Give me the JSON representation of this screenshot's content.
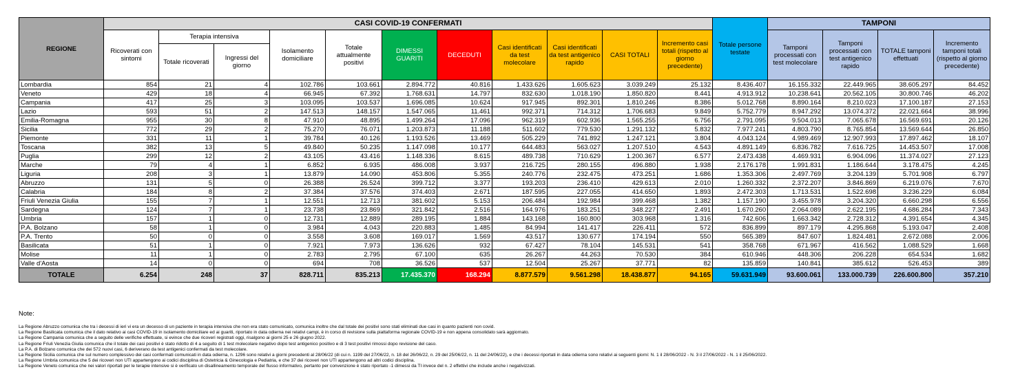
{
  "header": {
    "regione": "REGIONE",
    "casi_title": "CASI COVID-19 CONFERMATI",
    "terapia_intensiva": "Terapia intensiva",
    "tamponi_title": "TAMPONI",
    "columns": [
      "Ricoverati con sintomi",
      "Totale ricoverati",
      "Ingressi del giorno",
      "Isolamento domiciliare",
      "Totale attualmente positivi",
      "DIMESSI GUARITI",
      "DECEDUTI",
      "Casi identificati da test molecolare",
      "Casi identificati da test antigenico rapido",
      "CASI TOTALI",
      "Incremento casi totali (rispetto al giorno precedente)",
      "Totale persone testate",
      "Tamponi processati con test molecolare",
      "Tamponi processati con test antigenico rapido",
      "TOTALE tamponi effettuati",
      "Incremento tamponi totali (rispetto al giorno precedente)"
    ]
  },
  "table": {
    "rows": [
      [
        "Lombardia",
        "854",
        "21",
        "4",
        "102.786",
        "103.661",
        "2.894.772",
        "40.816",
        "1.433.626",
        "1.605.623",
        "3.039.249",
        "25.132",
        "8.436.407",
        "16.155.332",
        "22.449.965",
        "38.605.297",
        "84.452"
      ],
      [
        "Veneto",
        "429",
        "18",
        "4",
        "66.945",
        "67.392",
        "1.768.631",
        "14.797",
        "832.630",
        "1.018.190",
        "1.850.820",
        "8.441",
        "4.913.912",
        "10.238.641",
        "20.562.105",
        "30.800.746",
        "46.202"
      ],
      [
        "Campania",
        "417",
        "25",
        "3",
        "103.095",
        "103.537",
        "1.696.085",
        "10.624",
        "917.945",
        "892.301",
        "1.810.246",
        "8.386",
        "5.012.768",
        "8.890.164",
        "8.210.023",
        "17.100.187",
        "27.153"
      ],
      [
        "Lazio",
        "593",
        "51",
        "2",
        "147.513",
        "148.157",
        "1.547.065",
        "11.461",
        "992.371",
        "714.312",
        "1.706.683",
        "9.849",
        "5.752.779",
        "8.947.292",
        "13.074.372",
        "22.021.664",
        "38.996"
      ],
      [
        "Emilia-Romagna",
        "955",
        "30",
        "8",
        "47.910",
        "48.895",
        "1.499.264",
        "17.096",
        "962.319",
        "602.936",
        "1.565.255",
        "6.756",
        "2.791.095",
        "9.504.013",
        "7.065.678",
        "16.569.691",
        "20.126"
      ],
      [
        "Sicilia",
        "772",
        "29",
        "2",
        "75.270",
        "76.071",
        "1.203.873",
        "11.188",
        "511.602",
        "779.530",
        "1.291.132",
        "5.832",
        "7.977.241",
        "4.803.790",
        "8.765.854",
        "13.569.644",
        "26.850"
      ],
      [
        "Piemonte",
        "331",
        "11",
        "1",
        "39.784",
        "40.126",
        "1.193.526",
        "13.469",
        "505.229",
        "741.892",
        "1.247.121",
        "3.804",
        "4.043.124",
        "4.989.469",
        "12.907.993",
        "17.897.462",
        "18.107"
      ],
      [
        "Toscana",
        "382",
        "13",
        "5",
        "49.840",
        "50.235",
        "1.147.098",
        "10.177",
        "644.483",
        "563.027",
        "1.207.510",
        "4.543",
        "4.891.149",
        "6.836.782",
        "7.616.725",
        "14.453.507",
        "17.008"
      ],
      [
        "Puglia",
        "299",
        "12",
        "2",
        "43.105",
        "43.416",
        "1.148.336",
        "8.615",
        "489.738",
        "710.629",
        "1.200.367",
        "6.577",
        "2.473.438",
        "4.469.931",
        "6.904.096",
        "11.374.027",
        "27.123"
      ],
      [
        "Marche",
        "79",
        "4",
        "1",
        "6.852",
        "6.935",
        "486.008",
        "3.937",
        "216.725",
        "280.155",
        "496.880",
        "1.938",
        "2.176.178",
        "1.991.831",
        "1.186.644",
        "3.178.475",
        "4.245"
      ],
      [
        "Liguria",
        "208",
        "3",
        "1",
        "13.879",
        "14.090",
        "453.806",
        "5.355",
        "240.776",
        "232.475",
        "473.251",
        "1.686",
        "1.353.306",
        "2.497.769",
        "3.204.139",
        "5.701.908",
        "6.797"
      ],
      [
        "Abruzzo",
        "131",
        "5",
        "0",
        "26.388",
        "26.524",
        "399.712",
        "3.377",
        "193.203",
        "236.410",
        "429.613",
        "2.010",
        "1.260.332",
        "2.372.207",
        "3.846.869",
        "6.219.076",
        "7.670"
      ],
      [
        "Calabria",
        "184",
        "8",
        "2",
        "37.384",
        "37.576",
        "374.403",
        "2.671",
        "187.595",
        "227.055",
        "414.650",
        "1.893",
        "2.472.303",
        "1.713.531",
        "1.522.698",
        "3.236.229",
        "6.084"
      ],
      [
        "Friuli Venezia Giulia",
        "155",
        "7",
        "1",
        "12.551",
        "12.713",
        "381.602",
        "5.153",
        "206.484",
        "192.984",
        "399.468",
        "1.382",
        "1.157.190",
        "3.455.978",
        "3.204.320",
        "6.660.298",
        "6.556"
      ],
      [
        "Sardegna",
        "124",
        "7",
        "1",
        "23.738",
        "23.869",
        "321.842",
        "2.516",
        "164.976",
        "183.251",
        "348.227",
        "2.491",
        "1.670.260",
        "2.064.089",
        "2.622.195",
        "4.686.284",
        "7.343"
      ],
      [
        "Umbria",
        "157",
        "1",
        "0",
        "12.731",
        "12.889",
        "289.195",
        "1.884",
        "143.168",
        "160.800",
        "303.968",
        "1.316",
        "742.606",
        "1.663.342",
        "2.728.312",
        "4.391.654",
        "4.345"
      ],
      [
        "P.A. Bolzano",
        "58",
        "1",
        "0",
        "3.984",
        "4.043",
        "220.883",
        "1.485",
        "84.994",
        "141.417",
        "226.411",
        "572",
        "836.899",
        "897.179",
        "4.295.868",
        "5.193.047",
        "2.408"
      ],
      [
        "P.A. Trento",
        "50",
        "0",
        "0",
        "3.558",
        "3.608",
        "169.017",
        "1.569",
        "43.517",
        "130.677",
        "174.194",
        "550",
        "565.389",
        "847.607",
        "1.824.481",
        "2.672.088",
        "2.006"
      ],
      [
        "Basilicata",
        "51",
        "1",
        "0",
        "7.921",
        "7.973",
        "136.626",
        "932",
        "67.427",
        "78.104",
        "145.531",
        "541",
        "358.768",
        "671.967",
        "416.562",
        "1.088.529",
        "1.668"
      ],
      [
        "Molise",
        "11",
        "1",
        "0",
        "2.783",
        "2.795",
        "67.100",
        "635",
        "26.267",
        "44.263",
        "70.530",
        "384",
        "610.946",
        "448.306",
        "206.228",
        "654.534",
        "1.682"
      ],
      [
        "Valle d'Aosta",
        "14",
        "0",
        "0",
        "694",
        "708",
        "36.526",
        "537",
        "12.504",
        "25.267",
        "37.771",
        "82",
        "135.859",
        "140.841",
        "385.612",
        "526.453",
        "389"
      ]
    ],
    "total": [
      "TOTALE",
      "6.254",
      "248",
      "37",
      "828.711",
      "835.213",
      "17.435.370",
      "168.294",
      "8.877.579",
      "9.561.298",
      "18.438.877",
      "94.165",
      "59.631.949",
      "93.600.061",
      "133.000.739",
      "226.600.800",
      "357.210"
    ]
  },
  "notes": {
    "title": "Note:",
    "lines": [
      "La Regione Abruzzo comunica che tra i decessi di ieri vi era un decesso di un paziente in terapia intensiva che non era stato comunicato, comunica inoltre che dal totale dei positivi sono stati eliminati due casi in quanto pazienti non covid.",
      "La Regione Basilicata comunica che il dato relativo ai casi COVID-19 in isolamento domiciliare ed ai guariti, riportato in data odierna nei relativi campi, è in corso di revisione sulla piattaforma regionale COVID-19 e non appena consolidato sarà aggiornato.",
      "La Regione Campania comunica che a seguito delle verifiche effettuate, si evince che due ricoveri registrati oggi, risalgono ai giorni 25 e 26 giugno 2022.",
      "La Regione Friuli Venezia Giulia comunica che il totale dei casi positivi è stato ridotto di 4 a seguito di 1 test molecolare negativo dopo test antigenico positivo e di 3 test positivi rimossi dopo revisione del caso.",
      "La P.A. di Bolzano comunica che dei 572 nuovi casi, 6 deriverano da test antigenici confermati da test molecolare.",
      "La Regione Sicilia comunica che sul numero complessivo dei casi confermati comunicati in data odierna, n. 1296 sono relativi a giorni precedenti al 28/06/22 (di cui n. 1199 del 27/06/22, n. 18 del 26/06/22, n. 29 del 25/06/22, n. 11 del 24/06/22), e che i decessi riportati in data odierna sono relativi ai seguenti giorni: N. 1 il 28/06/2022 - N. 3 il 27/06/2022 - N. 1 il 25/06/2022.",
      "La Regione Umbria comunica che 5 dei ricoveri non UTI appartengono ai codici disciplina di Ostetricia & Ginecologia e Pediatria, e che 37 dei ricoveri non UTI appartengono ad altri codici disciplina.",
      "La Regione Veneto comunica che nei valori riportati per le terapie intensive si è verificato un disallineamento temporale del flusso informativo, pertanto per convenzione è stato riportato -1 dimessi da TI invece del n. 2 effettivi che include anche i negativizzati."
    ]
  }
}
